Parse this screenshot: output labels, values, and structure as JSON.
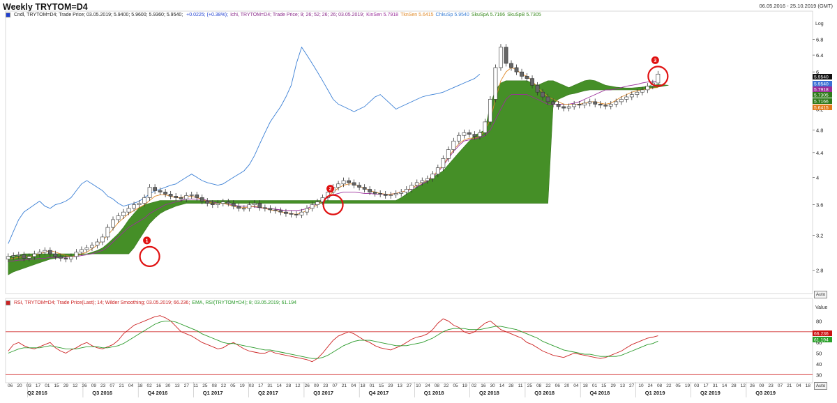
{
  "header": {
    "title": "Weekly TRYTOM=D4",
    "date_range": "06.05.2016 - 25.10.2019 (GMT)"
  },
  "price_legend": [
    {
      "text": "Cndl, TRYTOM=D4; Trade Price; 03.05.2019; 5.9400; 5.9600; 5.9360; 5.9540; ",
      "color": "#222222"
    },
    {
      "text": "+0.0225; (+0.38%);",
      "color": "#1f3fd1"
    },
    {
      "text": "Ichi, TRYTOM=D4; Trade Price;  9; 26; 52; 26; 26; 03.05.2019;",
      "color": "#8a2a8a"
    },
    {
      "text": "KinSen 5.7918",
      "color": "#9b2f9b"
    },
    {
      "text": "TknSen 5.6415",
      "color": "#e08a2a"
    },
    {
      "text": "ChkuSp 5.9540",
      "color": "#3a7fd5"
    },
    {
      "text": "SkuSpA 5.7166",
      "color": "#3a8a1f"
    },
    {
      "text": "SkuSpB 5.7305",
      "color": "#3a8a1f"
    }
  ],
  "rsi_legend": [
    {
      "text": "RSI, TRYTOM=D4; Trade Price(Last); 14; Wilder Smoothing; 03.05.2019; 66.236;",
      "color": "#cc2222"
    },
    {
      "text": "EMA, RSI(TRYTOM=D4); 8; 03.05.2019; 61.194",
      "color": "#2a9a2a"
    }
  ],
  "buttons": {
    "auto": "Auto"
  },
  "price_axis": {
    "scale_label": "Log",
    "ticks": [
      "6.8",
      "6.4",
      "6",
      "5.6",
      "5.2",
      "4.8",
      "4.4",
      "4",
      "3.6",
      "3.2",
      "2.8"
    ]
  },
  "rsi_axis": {
    "label": "Value",
    "ticks": [
      "80",
      "70",
      "60",
      "50",
      "40",
      "30"
    ]
  },
  "badges": [
    {
      "text": "5.9540",
      "bg": "#111111",
      "fg": "#ffffff"
    },
    {
      "text": "5.9540",
      "bg": "#3a6fd5",
      "fg": "#ffffff"
    },
    {
      "text": "5.7918",
      "bg": "#9b2f9b",
      "fg": "#ffffff"
    },
    {
      "text": "5.7305",
      "bg": "#2f7a1a",
      "fg": "#ffffff"
    },
    {
      "text": "5.7166",
      "bg": "#2f7a1a",
      "fg": "#ffffff"
    },
    {
      "text": "5.6415",
      "bg": "#e07a1a",
      "fg": "#ffffff"
    }
  ],
  "rsi_badges": [
    {
      "text": "66.236",
      "bg": "#cc1111",
      "fg": "#ffffff"
    },
    {
      "text": "61.194",
      "bg": "#2aa02a",
      "fg": "#ffffff"
    }
  ],
  "markers": [
    "1",
    "2",
    "3"
  ],
  "x_axis": {
    "day_labels": [
      "06",
      "20",
      "03",
      "17",
      "01",
      "15",
      "29",
      "12",
      "26",
      "09",
      "23",
      "07",
      "21",
      "04",
      "18",
      "02",
      "16",
      "30",
      "13",
      "27",
      "11",
      "25",
      "08",
      "22",
      "05",
      "19",
      "03",
      "17",
      "31",
      "14",
      "28",
      "12",
      "26",
      "09",
      "23",
      "07",
      "21",
      "04",
      "18",
      "01",
      "15",
      "29",
      "13",
      "27",
      "10",
      "24",
      "08",
      "22",
      "05",
      "19",
      "02",
      "16",
      "30",
      "14",
      "28",
      "11",
      "25",
      "08",
      "22",
      "06",
      "20",
      "04",
      "18",
      "01",
      "15",
      "29",
      "13",
      "27",
      "10",
      "24",
      "08",
      "22",
      "05",
      "19",
      "03",
      "17",
      "31",
      "14",
      "28",
      "12",
      "26",
      "09",
      "23",
      "07",
      "21",
      "04",
      "18"
    ],
    "quarters": [
      "Q2 2016",
      "Q3 2016",
      "Q4 2016",
      "Q1 2017",
      "Q2 2017",
      "Q3 2017",
      "Q4 2017",
      "Q1 2018",
      "Q2 2018",
      "Q3 2018",
      "Q4 2018",
      "Q1 2019",
      "Q2 2019",
      "Q3 2019"
    ]
  },
  "chart_data": [
    {
      "type": "candlestick",
      "title": "Weekly TRYTOM=D4",
      "y_scale": "log",
      "ylim": [
        2.6,
        7.3
      ],
      "closes": [
        2.95,
        2.96,
        2.97,
        2.93,
        2.95,
        2.98,
        3.0,
        3.02,
        2.98,
        2.95,
        2.93,
        2.92,
        2.95,
        3.0,
        3.03,
        3.05,
        3.08,
        3.12,
        3.18,
        3.3,
        3.4,
        3.45,
        3.5,
        3.55,
        3.6,
        3.62,
        3.7,
        3.85,
        3.8,
        3.78,
        3.75,
        3.72,
        3.7,
        3.68,
        3.73,
        3.74,
        3.7,
        3.65,
        3.62,
        3.6,
        3.62,
        3.64,
        3.62,
        3.58,
        3.55,
        3.55,
        3.6,
        3.62,
        3.56,
        3.55,
        3.53,
        3.52,
        3.5,
        3.48,
        3.47,
        3.46,
        3.5,
        3.55,
        3.6,
        3.64,
        3.7,
        3.78,
        3.85,
        3.9,
        3.95,
        3.92,
        3.88,
        3.85,
        3.82,
        3.78,
        3.76,
        3.75,
        3.73,
        3.74,
        3.76,
        3.78,
        3.82,
        3.88,
        3.92,
        3.95,
        3.98,
        4.05,
        4.15,
        4.3,
        4.45,
        4.6,
        4.7,
        4.75,
        4.72,
        4.68,
        4.75,
        4.95,
        5.4,
        6.1,
        6.6,
        6.2,
        6.1,
        6.0,
        5.9,
        5.85,
        5.7,
        5.55,
        5.45,
        5.35,
        5.3,
        5.25,
        5.22,
        5.25,
        5.3,
        5.28,
        5.32,
        5.35,
        5.3,
        5.28,
        5.26,
        5.3,
        5.35,
        5.4,
        5.45,
        5.5,
        5.55,
        5.6,
        5.68,
        5.75,
        5.95
      ],
      "tenkan": [
        2.92,
        2.93,
        2.94,
        2.95,
        2.95,
        2.96,
        2.98,
        3.0,
        3.02,
        3.0,
        2.98,
        2.96,
        2.95,
        2.96,
        2.98,
        3.0,
        3.04,
        3.08,
        3.14,
        3.2,
        3.28,
        3.36,
        3.42,
        3.48,
        3.52,
        3.56,
        3.6,
        3.66,
        3.72,
        3.74,
        3.74,
        3.72,
        3.7,
        3.7,
        3.72,
        3.72,
        3.7,
        3.68,
        3.64,
        3.62,
        3.62,
        3.62,
        3.6,
        3.58,
        3.56,
        3.56,
        3.57,
        3.58,
        3.57,
        3.55,
        3.53,
        3.52,
        3.5,
        3.49,
        3.48,
        3.47,
        3.49,
        3.52,
        3.56,
        3.6,
        3.65,
        3.72,
        3.78,
        3.84,
        3.88,
        3.9,
        3.9,
        3.86,
        3.84,
        3.8,
        3.78,
        3.76,
        3.75,
        3.75,
        3.76,
        3.78,
        3.8,
        3.84,
        3.88,
        3.92,
        3.96,
        4.02,
        4.1,
        4.2,
        4.32,
        4.45,
        4.55,
        4.62,
        4.65,
        4.65,
        4.68,
        4.8,
        5.0,
        5.4,
        5.8,
        6.0,
        6.1,
        6.05,
        5.95,
        5.9,
        5.8,
        5.65,
        5.55,
        5.45,
        5.4,
        5.35,
        5.3,
        5.3,
        5.3,
        5.3,
        5.32,
        5.35,
        5.35,
        5.32,
        5.3,
        5.32,
        5.38,
        5.45,
        5.5,
        5.55,
        5.58,
        5.6,
        5.62,
        5.64,
        5.65
      ],
      "kijun": [
        2.9,
        2.9,
        2.91,
        2.91,
        2.92,
        2.92,
        2.93,
        2.93,
        2.94,
        2.94,
        2.94,
        2.94,
        2.95,
        2.95,
        2.96,
        2.97,
        2.98,
        3.0,
        3.02,
        3.06,
        3.12,
        3.18,
        3.24,
        3.3,
        3.34,
        3.38,
        3.42,
        3.48,
        3.52,
        3.56,
        3.6,
        3.62,
        3.64,
        3.66,
        3.68,
        3.68,
        3.68,
        3.68,
        3.66,
        3.64,
        3.62,
        3.62,
        3.6,
        3.6,
        3.58,
        3.58,
        3.58,
        3.57,
        3.56,
        3.55,
        3.55,
        3.54,
        3.53,
        3.52,
        3.52,
        3.52,
        3.53,
        3.55,
        3.58,
        3.62,
        3.66,
        3.7,
        3.74,
        3.76,
        3.78,
        3.78,
        3.78,
        3.77,
        3.76,
        3.76,
        3.75,
        3.75,
        3.75,
        3.75,
        3.76,
        3.78,
        3.8,
        3.82,
        3.86,
        3.9,
        3.94,
        4.0,
        4.08,
        4.18,
        4.3,
        4.42,
        4.52,
        4.6,
        4.62,
        4.64,
        4.66,
        4.7,
        4.8,
        5.0,
        5.2,
        5.4,
        5.5,
        5.5,
        5.5,
        5.5,
        5.45,
        5.4,
        5.35,
        5.3,
        5.3,
        5.3,
        5.3,
        5.3,
        5.32,
        5.35,
        5.4,
        5.45,
        5.5,
        5.55,
        5.6,
        5.6,
        5.62,
        5.65,
        5.68,
        5.7,
        5.72,
        5.75,
        5.77,
        5.78,
        5.79
      ],
      "chikou": [
        3.1,
        3.25,
        3.4,
        3.5,
        3.55,
        3.6,
        3.65,
        3.58,
        3.55,
        3.6,
        3.62,
        3.65,
        3.7,
        3.8,
        3.9,
        3.95,
        3.9,
        3.85,
        3.8,
        3.72,
        3.68,
        3.62,
        3.58,
        3.6,
        3.62,
        3.65,
        3.7,
        3.75,
        3.8,
        3.82,
        3.85,
        3.88,
        3.9,
        3.95,
        4.0,
        4.05,
        4.0,
        3.95,
        3.92,
        3.9,
        3.88,
        3.9,
        3.95,
        4.0,
        4.05,
        4.1,
        4.2,
        4.35,
        4.55,
        4.75,
        4.95,
        5.1,
        5.25,
        5.45,
        5.7,
        6.2,
        6.6,
        6.4,
        6.2,
        6.0,
        5.8,
        5.6,
        5.4,
        5.3,
        5.25,
        5.2,
        5.15,
        5.2,
        5.25,
        5.35,
        5.45,
        5.5,
        5.4,
        5.3,
        5.2,
        5.25,
        5.3,
        5.35,
        5.4,
        5.45,
        5.48,
        5.5,
        5.52,
        5.55,
        5.6,
        5.65,
        5.7,
        5.75,
        5.8,
        5.85,
        5.95
      ],
      "cloud_a": [
        2.75,
        2.78,
        2.8,
        2.82,
        2.84,
        2.86,
        2.88,
        2.9,
        2.92,
        2.93,
        2.94,
        2.94,
        2.95,
        2.96,
        2.97,
        2.98,
        3.0,
        3.02,
        3.05,
        3.1,
        3.16,
        3.22,
        3.3,
        3.4,
        3.48,
        3.56,
        3.6,
        3.62,
        3.64,
        3.66,
        3.66,
        3.66,
        3.66,
        3.66,
        3.66,
        3.66,
        3.66,
        3.66,
        3.66,
        3.66,
        3.66,
        3.66,
        3.66,
        3.66,
        3.66,
        3.66,
        3.66,
        3.66,
        3.66,
        3.66,
        3.66,
        3.66,
        3.66,
        3.66,
        3.66,
        3.66,
        3.66,
        3.66,
        3.66,
        3.66,
        3.66,
        3.66,
        3.66,
        3.66,
        3.66,
        3.66,
        3.66,
        3.66,
        3.66,
        3.66,
        3.66,
        3.66,
        3.66,
        3.66,
        3.66,
        3.7,
        3.75,
        3.8,
        3.85,
        3.9,
        3.95,
        4.0,
        4.05,
        4.1,
        4.2,
        4.3,
        4.4,
        4.5,
        4.6,
        4.7,
        4.75,
        4.8,
        5.3,
        5.6,
        5.75,
        5.8,
        5.8,
        5.8,
        5.8,
        5.8,
        5.75,
        5.7,
        5.75,
        5.8,
        5.8,
        5.75,
        5.7,
        5.65,
        5.7,
        5.75,
        5.8,
        5.82,
        5.8,
        5.75,
        5.7,
        5.68,
        5.66,
        5.65,
        5.64,
        5.64,
        5.65,
        5.66,
        5.68,
        5.7,
        5.72
      ],
      "cloud_b": [
        2.95,
        2.96,
        2.97,
        2.98,
        2.98,
        2.98,
        2.98,
        2.98,
        2.98,
        2.98,
        2.98,
        2.98,
        2.98,
        2.98,
        2.98,
        2.98,
        2.98,
        2.98,
        2.98,
        2.98,
        2.98,
        2.98,
        2.98,
        2.98,
        3.05,
        3.15,
        3.25,
        3.35,
        3.42,
        3.48,
        3.52,
        3.55,
        3.58,
        3.6,
        3.62,
        3.62,
        3.62,
        3.62,
        3.62,
        3.62,
        3.62,
        3.62,
        3.62,
        3.62,
        3.62,
        3.62,
        3.62,
        3.62,
        3.62,
        3.62,
        3.62,
        3.62,
        3.62,
        3.62,
        3.62,
        3.62,
        3.62,
        3.62,
        3.62,
        3.62,
        3.62,
        3.62,
        3.62,
        3.62,
        3.62,
        3.62,
        3.62,
        3.62,
        3.62,
        3.62,
        3.62,
        3.62,
        3.62,
        3.62,
        3.62,
        3.62,
        3.62,
        3.62,
        3.62,
        3.62,
        3.62,
        3.62,
        3.62,
        3.62,
        3.62,
        3.62,
        3.62,
        3.62,
        3.62,
        3.62,
        3.62,
        3.62,
        3.62,
        3.62,
        3.62,
        3.62,
        3.62,
        3.62,
        3.62,
        3.62,
        3.62,
        3.62,
        3.62,
        3.62,
        5.3,
        5.4,
        5.45,
        5.5,
        5.52,
        5.55,
        5.58,
        5.6,
        5.6,
        5.6,
        5.6,
        5.6,
        5.6,
        5.6,
        5.6,
        5.6,
        5.6,
        5.6,
        5.62,
        5.64,
        5.66,
        5.68,
        5.7
      ],
      "markers": [
        {
          "label": "1",
          "x_index": 27,
          "y": 2.95
        },
        {
          "label": "2",
          "x_index": 62,
          "y": 3.6
        },
        {
          "label": "3",
          "x_index": 124,
          "y": 5.9
        }
      ]
    },
    {
      "type": "line",
      "ylim": [
        25,
        90
      ],
      "reference_lines": [
        70,
        30
      ],
      "series": [
        {
          "values": [
            52,
            58,
            60,
            57,
            55,
            54,
            56,
            58,
            60,
            55,
            52,
            50,
            53,
            55,
            58,
            60,
            57,
            55,
            54,
            56,
            58,
            62,
            68,
            72,
            76,
            78,
            80,
            82,
            84,
            85,
            83,
            80,
            75,
            70,
            68,
            66,
            63,
            60,
            58,
            56,
            54,
            55,
            58,
            60,
            57,
            54,
            52,
            51,
            50,
            50,
            52,
            50,
            49,
            48,
            47,
            46,
            45,
            44,
            42,
            45,
            50,
            56,
            62,
            66,
            68,
            70,
            68,
            65,
            62,
            60,
            57,
            55,
            54,
            53,
            55,
            57,
            60,
            63,
            65,
            66,
            68,
            72,
            78,
            82,
            80,
            76,
            74,
            70,
            68,
            70,
            74,
            78,
            80,
            76,
            72,
            70,
            68,
            66,
            64,
            60,
            58,
            55,
            52,
            50,
            48,
            47,
            46,
            48,
            50,
            49,
            48,
            47,
            46,
            45,
            46,
            48,
            50,
            52,
            55,
            58,
            60,
            62,
            64,
            65,
            66.236
          ]
        },
        {
          "values": [
            50,
            52,
            54,
            55,
            55,
            55,
            55,
            56,
            57,
            56,
            55,
            54,
            54,
            54,
            55,
            56,
            56,
            56,
            55,
            55,
            56,
            57,
            59,
            62,
            65,
            68,
            71,
            74,
            77,
            79,
            80,
            80,
            79,
            77,
            75,
            73,
            71,
            68,
            66,
            64,
            62,
            60,
            59,
            59,
            58,
            57,
            56,
            55,
            54,
            53,
            53,
            52,
            51,
            50,
            49,
            48,
            47,
            46,
            45,
            45,
            46,
            48,
            51,
            54,
            57,
            59,
            61,
            62,
            62,
            62,
            61,
            60,
            59,
            58,
            57,
            57,
            57,
            58,
            59,
            60,
            62,
            64,
            67,
            70,
            72,
            73,
            73,
            73,
            72,
            72,
            72,
            73,
            74,
            75,
            75,
            74,
            73,
            72,
            70,
            68,
            66,
            64,
            61,
            59,
            57,
            55,
            53,
            52,
            51,
            50,
            49,
            49,
            48,
            47,
            47,
            47,
            47,
            48,
            50,
            52,
            54,
            56,
            58,
            59,
            61.194
          ]
        }
      ]
    }
  ]
}
